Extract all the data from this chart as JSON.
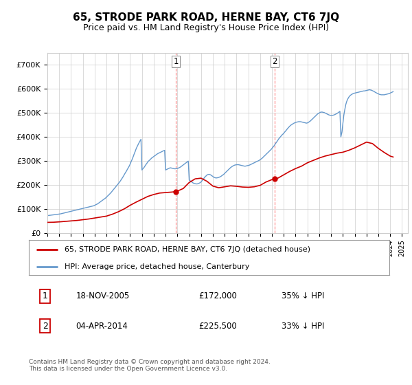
{
  "title": "65, STRODE PARK ROAD, HERNE BAY, CT6 7JQ",
  "subtitle": "Price paid vs. HM Land Registry's House Price Index (HPI)",
  "footer": "Contains HM Land Registry data © Crown copyright and database right 2024.\nThis data is licensed under the Open Government Licence v3.0.",
  "legend_line1": "65, STRODE PARK ROAD, HERNE BAY, CT6 7JQ (detached house)",
  "legend_line2": "HPI: Average price, detached house, Canterbury",
  "transaction1_date": "18-NOV-2005",
  "transaction1_price": "£172,000",
  "transaction1_hpi": "35% ↓ HPI",
  "transaction2_date": "04-APR-2014",
  "transaction2_price": "£225,500",
  "transaction2_hpi": "33% ↓ HPI",
  "hpi_color": "#6699cc",
  "price_color": "#cc0000",
  "background_color": "#ffffff",
  "grid_color": "#cccccc",
  "ylim": [
    0,
    750000
  ],
  "yticks": [
    0,
    100000,
    200000,
    300000,
    400000,
    500000,
    600000,
    700000
  ],
  "ytick_labels": [
    "£0",
    "£100K",
    "£200K",
    "£300K",
    "£400K",
    "£500K",
    "£600K",
    "£700K"
  ],
  "xmin": 1995.0,
  "xmax": 2025.5,
  "transaction1_x": 2005.88,
  "transaction1_y": 172000,
  "transaction2_x": 2014.25,
  "transaction2_y": 225500,
  "price_x": [
    1995.0,
    1995.5,
    1996.0,
    1996.5,
    1997.0,
    1997.5,
    1998.0,
    1998.5,
    1999.0,
    1999.5,
    2000.0,
    2000.5,
    2001.0,
    2001.5,
    2002.0,
    2002.5,
    2003.0,
    2003.5,
    2004.0,
    2004.5,
    2005.0,
    2005.5,
    2005.88,
    2006.0,
    2006.5,
    2007.0,
    2007.5,
    2008.0,
    2008.5,
    2009.0,
    2009.5,
    2010.0,
    2010.5,
    2011.0,
    2011.5,
    2012.0,
    2012.5,
    2013.0,
    2013.5,
    2014.0,
    2014.25,
    2014.5,
    2015.0,
    2015.5,
    2016.0,
    2016.5,
    2017.0,
    2017.5,
    2018.0,
    2018.5,
    2019.0,
    2019.5,
    2020.0,
    2020.5,
    2021.0,
    2021.5,
    2022.0,
    2022.5,
    2023.0,
    2023.5,
    2024.0,
    2024.25
  ],
  "price_y": [
    44000,
    44500,
    46000,
    48000,
    50000,
    52000,
    55000,
    58000,
    62000,
    66000,
    70000,
    78000,
    88000,
    100000,
    115000,
    128000,
    140000,
    152000,
    160000,
    166000,
    168000,
    170000,
    172000,
    174000,
    185000,
    210000,
    225000,
    228000,
    215000,
    195000,
    188000,
    192000,
    196000,
    194000,
    191000,
    190000,
    192000,
    198000,
    212000,
    222000,
    225500,
    228000,
    242000,
    256000,
    268000,
    278000,
    292000,
    302000,
    312000,
    320000,
    326000,
    332000,
    336000,
    344000,
    354000,
    366000,
    378000,
    372000,
    352000,
    335000,
    320000,
    316000
  ],
  "hpi_x": [
    1995.0,
    1995.08,
    1995.17,
    1995.25,
    1995.33,
    1995.42,
    1995.5,
    1995.58,
    1995.67,
    1995.75,
    1995.83,
    1995.92,
    1996.0,
    1996.08,
    1996.17,
    1996.25,
    1996.33,
    1996.42,
    1996.5,
    1996.58,
    1996.67,
    1996.75,
    1996.83,
    1996.92,
    1997.0,
    1997.08,
    1997.17,
    1997.25,
    1997.33,
    1997.42,
    1997.5,
    1997.58,
    1997.67,
    1997.75,
    1997.83,
    1997.92,
    1998.0,
    1998.08,
    1998.17,
    1998.25,
    1998.33,
    1998.42,
    1998.5,
    1998.58,
    1998.67,
    1998.75,
    1998.83,
    1998.92,
    1999.0,
    1999.08,
    1999.17,
    1999.25,
    1999.33,
    1999.42,
    1999.5,
    1999.58,
    1999.67,
    1999.75,
    1999.83,
    1999.92,
    2000.0,
    2000.08,
    2000.17,
    2000.25,
    2000.33,
    2000.42,
    2000.5,
    2000.58,
    2000.67,
    2000.75,
    2000.83,
    2000.92,
    2001.0,
    2001.08,
    2001.17,
    2001.25,
    2001.33,
    2001.42,
    2001.5,
    2001.58,
    2001.67,
    2001.75,
    2001.83,
    2001.92,
    2002.0,
    2002.08,
    2002.17,
    2002.25,
    2002.33,
    2002.42,
    2002.5,
    2002.58,
    2002.67,
    2002.75,
    2002.83,
    2002.92,
    2003.0,
    2003.08,
    2003.17,
    2003.25,
    2003.33,
    2003.42,
    2003.5,
    2003.58,
    2003.67,
    2003.75,
    2003.83,
    2003.92,
    2004.0,
    2004.08,
    2004.17,
    2004.25,
    2004.33,
    2004.42,
    2004.5,
    2004.58,
    2004.67,
    2004.75,
    2004.83,
    2004.92,
    2005.0,
    2005.08,
    2005.17,
    2005.25,
    2005.33,
    2005.42,
    2005.5,
    2005.58,
    2005.67,
    2005.75,
    2005.83,
    2005.92,
    2006.0,
    2006.08,
    2006.17,
    2006.25,
    2006.33,
    2006.42,
    2006.5,
    2006.58,
    2006.67,
    2006.75,
    2006.83,
    2006.92,
    2007.0,
    2007.08,
    2007.17,
    2007.25,
    2007.33,
    2007.42,
    2007.5,
    2007.58,
    2007.67,
    2007.75,
    2007.83,
    2007.92,
    2008.0,
    2008.08,
    2008.17,
    2008.25,
    2008.33,
    2008.42,
    2008.5,
    2008.58,
    2008.67,
    2008.75,
    2008.83,
    2008.92,
    2009.0,
    2009.08,
    2009.17,
    2009.25,
    2009.33,
    2009.42,
    2009.5,
    2009.58,
    2009.67,
    2009.75,
    2009.83,
    2009.92,
    2010.0,
    2010.08,
    2010.17,
    2010.25,
    2010.33,
    2010.42,
    2010.5,
    2010.58,
    2010.67,
    2010.75,
    2010.83,
    2010.92,
    2011.0,
    2011.08,
    2011.17,
    2011.25,
    2011.33,
    2011.42,
    2011.5,
    2011.58,
    2011.67,
    2011.75,
    2011.83,
    2011.92,
    2012.0,
    2012.08,
    2012.17,
    2012.25,
    2012.33,
    2012.42,
    2012.5,
    2012.58,
    2012.67,
    2012.75,
    2012.83,
    2012.92,
    2013.0,
    2013.08,
    2013.17,
    2013.25,
    2013.33,
    2013.42,
    2013.5,
    2013.58,
    2013.67,
    2013.75,
    2013.83,
    2013.92,
    2014.0,
    2014.08,
    2014.17,
    2014.25,
    2014.33,
    2014.42,
    2014.5,
    2014.58,
    2014.67,
    2014.75,
    2014.83,
    2014.92,
    2015.0,
    2015.08,
    2015.17,
    2015.25,
    2015.33,
    2015.42,
    2015.5,
    2015.58,
    2015.67,
    2015.75,
    2015.83,
    2015.92,
    2016.0,
    2016.08,
    2016.17,
    2016.25,
    2016.33,
    2016.42,
    2016.5,
    2016.58,
    2016.67,
    2016.75,
    2016.83,
    2016.92,
    2017.0,
    2017.08,
    2017.17,
    2017.25,
    2017.33,
    2017.42,
    2017.5,
    2017.58,
    2017.67,
    2017.75,
    2017.83,
    2017.92,
    2018.0,
    2018.08,
    2018.17,
    2018.25,
    2018.33,
    2018.42,
    2018.5,
    2018.58,
    2018.67,
    2018.75,
    2018.83,
    2018.92,
    2019.0,
    2019.08,
    2019.17,
    2019.25,
    2019.33,
    2019.42,
    2019.5,
    2019.58,
    2019.67,
    2019.75,
    2019.83,
    2019.92,
    2020.0,
    2020.08,
    2020.17,
    2020.25,
    2020.33,
    2020.42,
    2020.5,
    2020.58,
    2020.67,
    2020.75,
    2020.83,
    2020.92,
    2021.0,
    2021.08,
    2021.17,
    2021.25,
    2021.33,
    2021.42,
    2021.5,
    2021.58,
    2021.67,
    2021.75,
    2021.83,
    2021.92,
    2022.0,
    2022.08,
    2022.17,
    2022.25,
    2022.33,
    2022.42,
    2022.5,
    2022.58,
    2022.67,
    2022.75,
    2022.83,
    2022.92,
    2023.0,
    2023.08,
    2023.17,
    2023.25,
    2023.33,
    2023.42,
    2023.5,
    2023.58,
    2023.67,
    2023.75,
    2023.83,
    2023.92,
    2024.0,
    2024.08,
    2024.17,
    2024.25
  ],
  "hpi_y": [
    72000,
    72500,
    73000,
    73500,
    74000,
    74500,
    75000,
    75500,
    76000,
    76500,
    77000,
    77500,
    78000,
    79000,
    80000,
    81000,
    82000,
    83000,
    84000,
    85000,
    86000,
    87000,
    88000,
    89000,
    90000,
    91000,
    92000,
    93000,
    94000,
    95000,
    96000,
    97000,
    98000,
    99000,
    100000,
    101000,
    102000,
    103000,
    104000,
    105000,
    106000,
    107000,
    108000,
    109000,
    110000,
    111000,
    112000,
    113000,
    115000,
    117000,
    119000,
    121000,
    124000,
    127000,
    130000,
    133000,
    136000,
    139000,
    142000,
    145000,
    149000,
    153000,
    157000,
    161000,
    165000,
    170000,
    175000,
    180000,
    185000,
    190000,
    195000,
    200000,
    205000,
    210000,
    216000,
    222000,
    228000,
    235000,
    242000,
    249000,
    256000,
    263000,
    270000,
    278000,
    286000,
    296000,
    306000,
    316000,
    327000,
    338000,
    349000,
    358000,
    367000,
    375000,
    382000,
    390000,
    262000,
    267000,
    272000,
    278000,
    284000,
    290000,
    296000,
    300000,
    304000,
    308000,
    312000,
    315000,
    318000,
    321000,
    324000,
    327000,
    330000,
    332000,
    334000,
    336000,
    338000,
    340000,
    342000,
    344000,
    262000,
    264000,
    266000,
    268000,
    270000,
    271000,
    270000,
    269000,
    268000,
    267000,
    267000,
    268000,
    268000,
    270000,
    272000,
    274000,
    277000,
    280000,
    283000,
    286000,
    290000,
    293000,
    296000,
    299000,
    220000,
    217000,
    214000,
    211000,
    208000,
    206000,
    205000,
    204000,
    204000,
    205000,
    207000,
    209000,
    212000,
    217000,
    222000,
    228000,
    233000,
    237000,
    241000,
    243000,
    244000,
    243000,
    241000,
    238000,
    235000,
    232000,
    230000,
    229000,
    229000,
    230000,
    231000,
    233000,
    235000,
    238000,
    241000,
    244000,
    248000,
    252000,
    256000,
    260000,
    264000,
    268000,
    272000,
    275000,
    278000,
    280000,
    282000,
    283000,
    284000,
    284000,
    284000,
    283000,
    282000,
    281000,
    280000,
    279000,
    278000,
    278000,
    279000,
    280000,
    281000,
    282000,
    284000,
    286000,
    288000,
    290000,
    292000,
    294000,
    296000,
    298000,
    300000,
    302000,
    305000,
    308000,
    311000,
    315000,
    319000,
    323000,
    327000,
    331000,
    335000,
    339000,
    343000,
    347000,
    352000,
    357000,
    362000,
    368000,
    374000,
    380000,
    386000,
    392000,
    397000,
    402000,
    407000,
    411000,
    415000,
    420000,
    425000,
    430000,
    435000,
    440000,
    444000,
    448000,
    451000,
    454000,
    456000,
    458000,
    460000,
    461000,
    462000,
    463000,
    463000,
    463000,
    462000,
    461000,
    460000,
    459000,
    458000,
    457000,
    458000,
    460000,
    463000,
    466000,
    470000,
    474000,
    478000,
    482000,
    486000,
    490000,
    494000,
    497000,
    500000,
    502000,
    503000,
    503000,
    502000,
    501000,
    499000,
    497000,
    495000,
    493000,
    491000,
    490000,
    489000,
    489000,
    490000,
    491000,
    493000,
    495000,
    497000,
    500000,
    503000,
    506000,
    400000,
    420000,
    455000,
    490000,
    515000,
    535000,
    548000,
    558000,
    565000,
    570000,
    574000,
    577000,
    579000,
    581000,
    582000,
    583000,
    584000,
    585000,
    586000,
    587000,
    588000,
    589000,
    590000,
    591000,
    591000,
    592000,
    593000,
    594000,
    595000,
    596000,
    595000,
    594000,
    592000,
    590000,
    588000,
    585000,
    583000,
    581000,
    579000,
    577000,
    576000,
    575000,
    575000,
    575000,
    575000,
    576000,
    577000,
    578000,
    579000,
    580000,
    582000,
    584000,
    586000,
    588000,
    590000,
    592000,
    594000,
    596000,
    597000,
    598000,
    599000,
    601000,
    602000,
    603000
  ]
}
